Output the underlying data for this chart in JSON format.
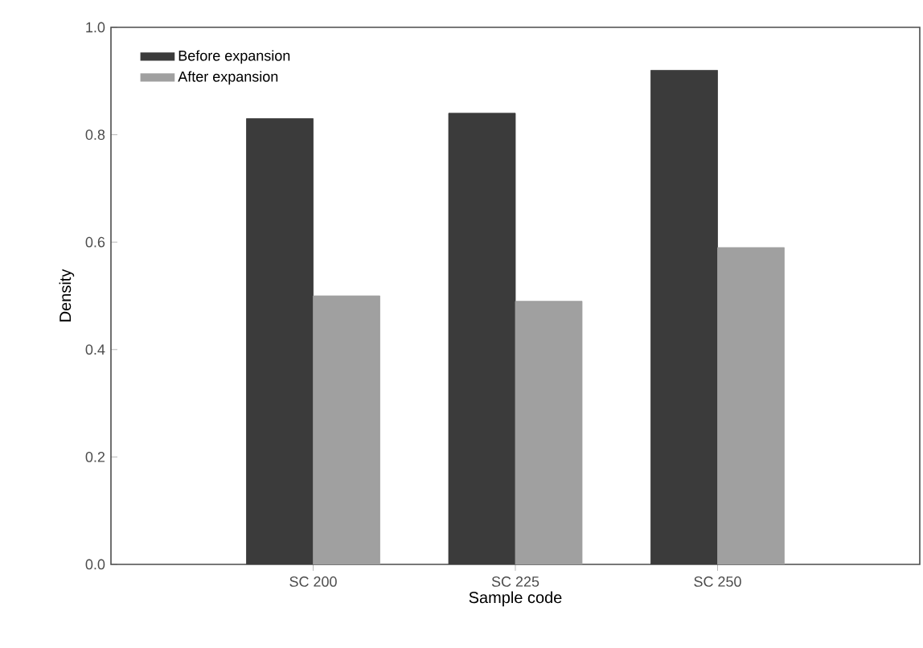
{
  "chart_data": {
    "type": "bar",
    "xlabel": "Sample code",
    "ylabel": "Density",
    "categories": [
      "SC 200",
      "SC 225",
      "SC 250"
    ],
    "series": [
      {
        "name": "Before expansion",
        "color": "#3b3b3b",
        "values": [
          0.83,
          0.84,
          0.92
        ]
      },
      {
        "name": "After expansion",
        "color": "#a0a0a0",
        "values": [
          0.5,
          0.49,
          0.59
        ]
      }
    ],
    "ylim": [
      0,
      1.0
    ],
    "yticks": [
      {
        "value": 0,
        "label": "0.0"
      },
      0.2,
      0.4,
      0.6,
      0.8,
      {
        "value": 1,
        "label": "1.0"
      }
    ],
    "legend": "top left",
    "grid": false
  }
}
